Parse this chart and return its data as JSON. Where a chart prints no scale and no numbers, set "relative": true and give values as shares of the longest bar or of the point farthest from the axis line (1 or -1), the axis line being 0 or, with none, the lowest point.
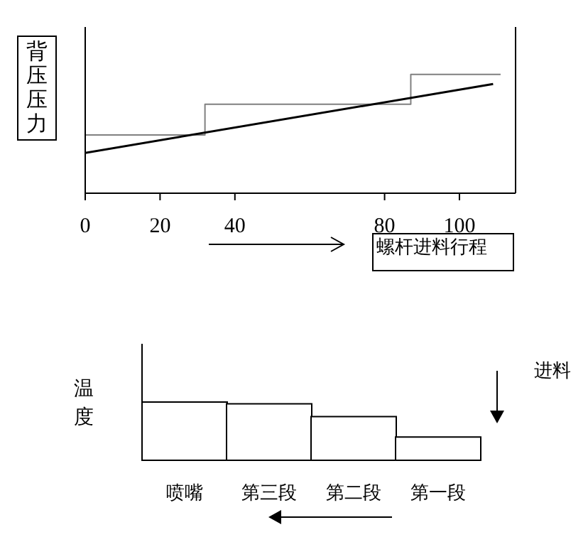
{
  "chart_data": [
    {
      "type": "line",
      "xlabel": "螺杆进料行程",
      "ylabel": "背压压力",
      "relative": true,
      "xlim": [
        0,
        115
      ],
      "xticks": [
        0,
        20,
        40,
        80,
        100
      ],
      "series": [
        {
          "type": "step",
          "color": "#808080",
          "x": [
            0,
            32,
            87,
            111
          ],
          "values": [
            0.49,
            0.75,
            1,
            1
          ]
        },
        {
          "type": "line",
          "color": "#000000",
          "x": [
            0,
            109
          ],
          "values": [
            0.34,
            0.92
          ]
        }
      ]
    },
    {
      "type": "bar",
      "ylabel": "温度",
      "relative": true,
      "categories": [
        "喷嘴",
        "第三段",
        "第二段",
        "第一段"
      ],
      "values": [
        1,
        0.97,
        0.75,
        0.4
      ],
      "color": "#000000",
      "annotations": [
        "进料"
      ]
    }
  ]
}
